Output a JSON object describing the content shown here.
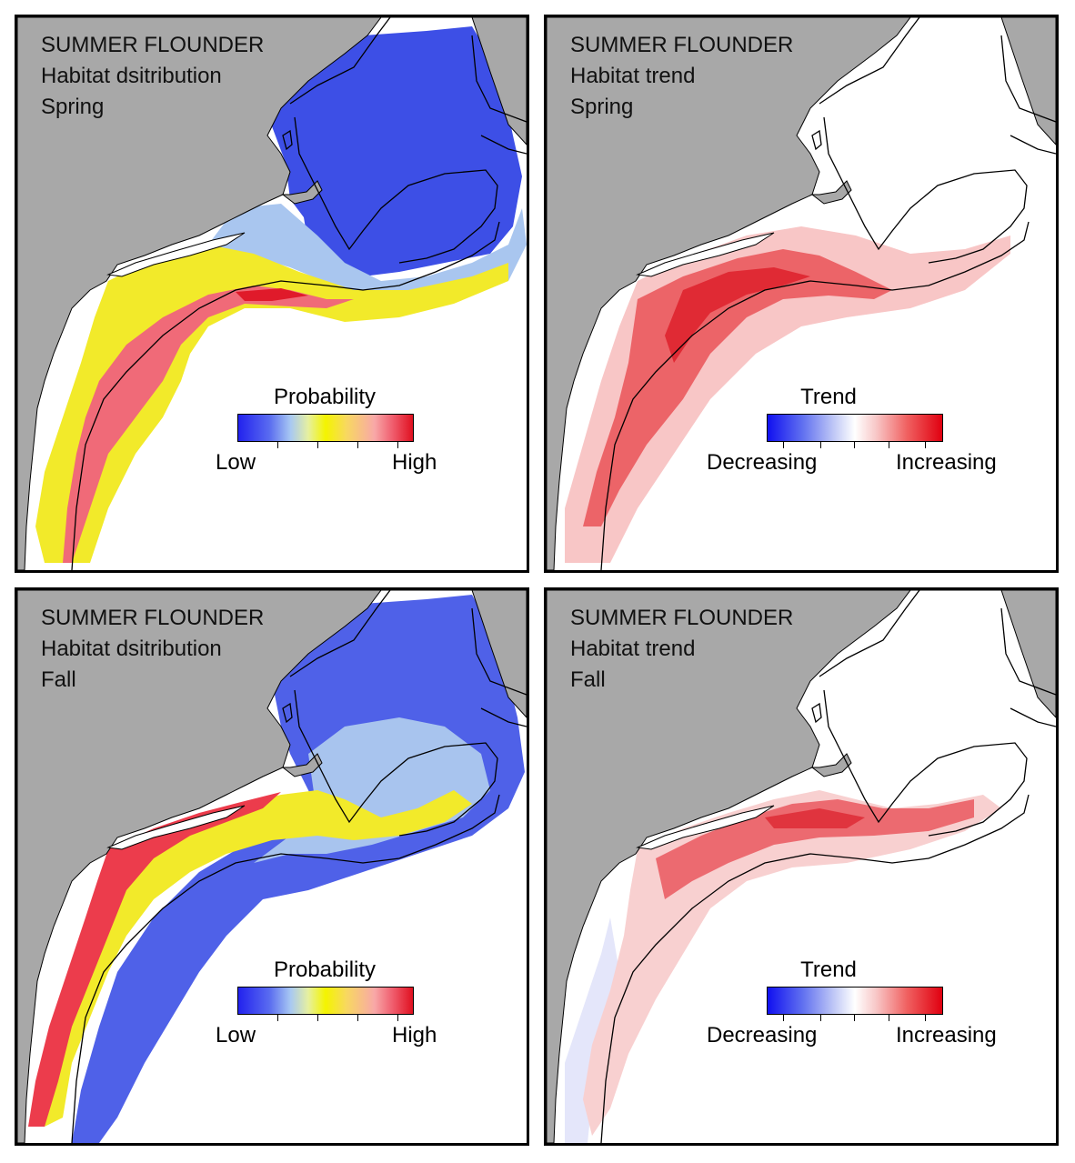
{
  "panels": [
    {
      "title": "SUMMER FLOUNDER",
      "subtitle": "Habitat dsitribution",
      "season": "Spring",
      "legend": {
        "title": "Probability",
        "low": "Low",
        "high": "High",
        "scale": "probability"
      }
    },
    {
      "title": "SUMMER FLOUNDER",
      "subtitle": "Habitat trend",
      "season": "Spring",
      "legend": {
        "title": "Trend",
        "low": "Decreasing",
        "high": "Increasing",
        "scale": "trend"
      }
    },
    {
      "title": "SUMMER FLOUNDER",
      "subtitle": "Habitat dsitribution",
      "season": "Fall",
      "legend": {
        "title": "Probability",
        "low": "Low",
        "high": "High",
        "scale": "probability"
      }
    },
    {
      "title": "SUMMER FLOUNDER",
      "subtitle": "Habitat trend",
      "season": "Fall",
      "legend": {
        "title": "Trend",
        "low": "Decreasing",
        "high": "Increasing",
        "scale": "trend"
      }
    }
  ],
  "colors": {
    "land": "#a8a8a8",
    "ocean": "#ffffff",
    "outline": "#000000",
    "prob_low": "#2222ee",
    "prob_mid": "#f4f400",
    "prob_high": "#e01020",
    "trend_decrease": "#1010f0",
    "trend_increase": "#e00010"
  }
}
